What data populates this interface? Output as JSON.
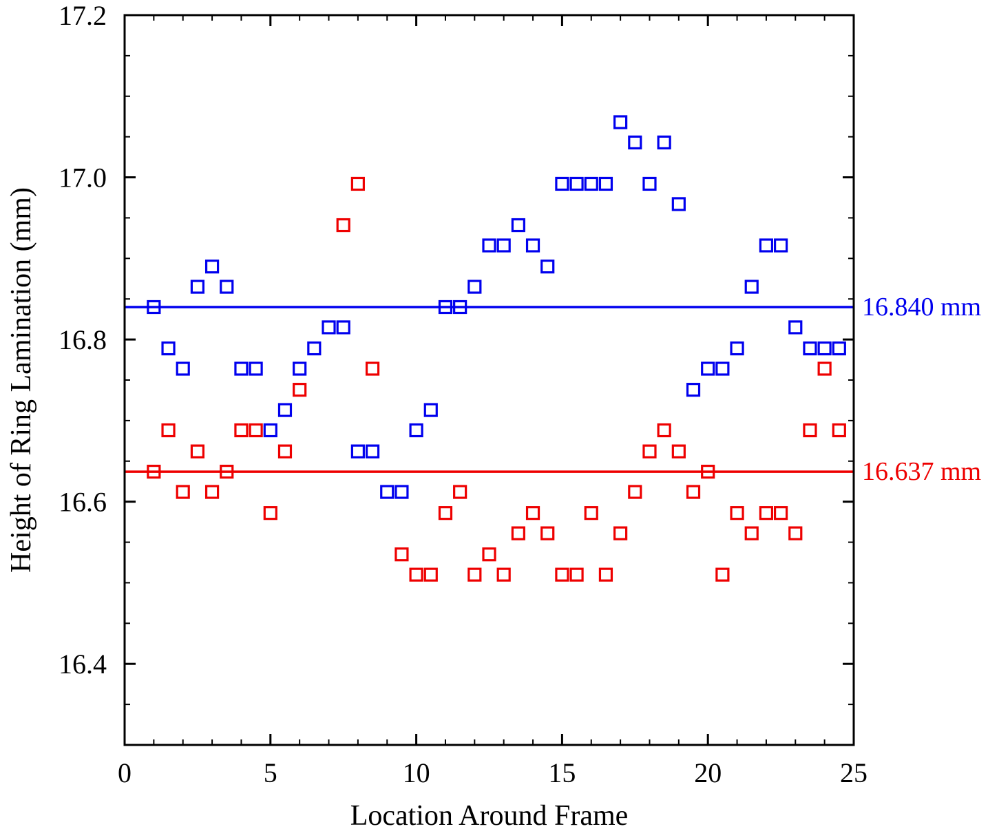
{
  "chart_data": {
    "type": "scatter",
    "title": "",
    "xlabel": "Location Around Frame",
    "ylabel": "Height of Ring Lamination (mm)",
    "xlim": [
      0,
      25
    ],
    "ylim": [
      16.3,
      17.2
    ],
    "xticks": [
      0,
      5,
      10,
      15,
      20,
      25
    ],
    "xtick_labels": [
      "0",
      "5",
      "10",
      "15",
      "20",
      "25"
    ],
    "yticks": [
      16.4,
      16.6,
      16.8,
      17.0,
      17.2
    ],
    "ytick_labels": [
      "16.4",
      "16.6",
      "16.8",
      "17.0",
      "17.2"
    ],
    "x_minor_step": 1,
    "y_minor_step": 0.05,
    "grid": false,
    "legend": "none",
    "marker": "open-square",
    "series": [
      {
        "color": "#0000ee",
        "x": [
          1,
          1.5,
          2,
          2.5,
          3,
          3.5,
          4,
          4.5,
          5,
          5.5,
          6,
          6.5,
          7,
          7.5,
          8,
          8.5,
          9,
          9.5,
          10,
          10.5,
          11,
          11.5,
          12,
          12.5,
          13,
          13.5,
          14,
          14.5,
          15,
          15.5,
          16,
          16.5,
          17,
          17.5,
          18,
          18.5,
          19,
          19.5,
          20,
          20.5,
          21,
          21.5,
          22,
          22.5,
          23,
          23.5,
          24,
          24.5
        ],
        "y": [
          16.84,
          16.789,
          16.764,
          16.865,
          16.89,
          16.865,
          16.764,
          16.764,
          16.688,
          16.713,
          16.764,
          16.789,
          16.815,
          16.815,
          16.662,
          16.662,
          16.612,
          16.612,
          16.688,
          16.713,
          16.84,
          16.84,
          16.865,
          16.916,
          16.916,
          16.941,
          16.916,
          16.89,
          16.992,
          16.992,
          16.992,
          16.992,
          17.068,
          17.043,
          16.992,
          17.043,
          16.967,
          16.738,
          16.764,
          16.764,
          16.789,
          16.865,
          16.916,
          16.916,
          16.815,
          16.789,
          16.789,
          16.789
        ]
      },
      {
        "color": "#ee0000",
        "x": [
          1,
          1.5,
          2,
          2.5,
          3,
          3.5,
          4,
          4.5,
          5,
          5.5,
          6,
          7.5,
          8,
          8.5,
          9.5,
          10,
          10.5,
          11,
          11.5,
          12,
          12.5,
          13,
          13.5,
          14,
          14.5,
          15,
          15.5,
          16,
          16.5,
          17,
          17.5,
          18,
          18.5,
          19,
          19.5,
          20,
          20.5,
          21,
          21.5,
          22,
          22.5,
          23,
          23.5,
          24,
          24.5
        ],
        "y": [
          16.637,
          16.688,
          16.612,
          16.662,
          16.612,
          16.637,
          16.688,
          16.688,
          16.586,
          16.662,
          16.738,
          16.941,
          16.992,
          16.764,
          16.535,
          16.51,
          16.51,
          16.586,
          16.612,
          16.51,
          16.535,
          16.51,
          16.561,
          16.586,
          16.561,
          16.51,
          16.51,
          16.586,
          16.51,
          16.561,
          16.612,
          16.662,
          16.688,
          16.662,
          16.612,
          16.637,
          16.51,
          16.586,
          16.561,
          16.586,
          16.586,
          16.561,
          16.688,
          16.764,
          16.688
        ]
      }
    ],
    "reference_lines": [
      {
        "y": 16.84,
        "color": "#0000ee",
        "label": "16.840 mm"
      },
      {
        "y": 16.637,
        "color": "#ee0000",
        "label": "16.637 mm"
      }
    ]
  }
}
